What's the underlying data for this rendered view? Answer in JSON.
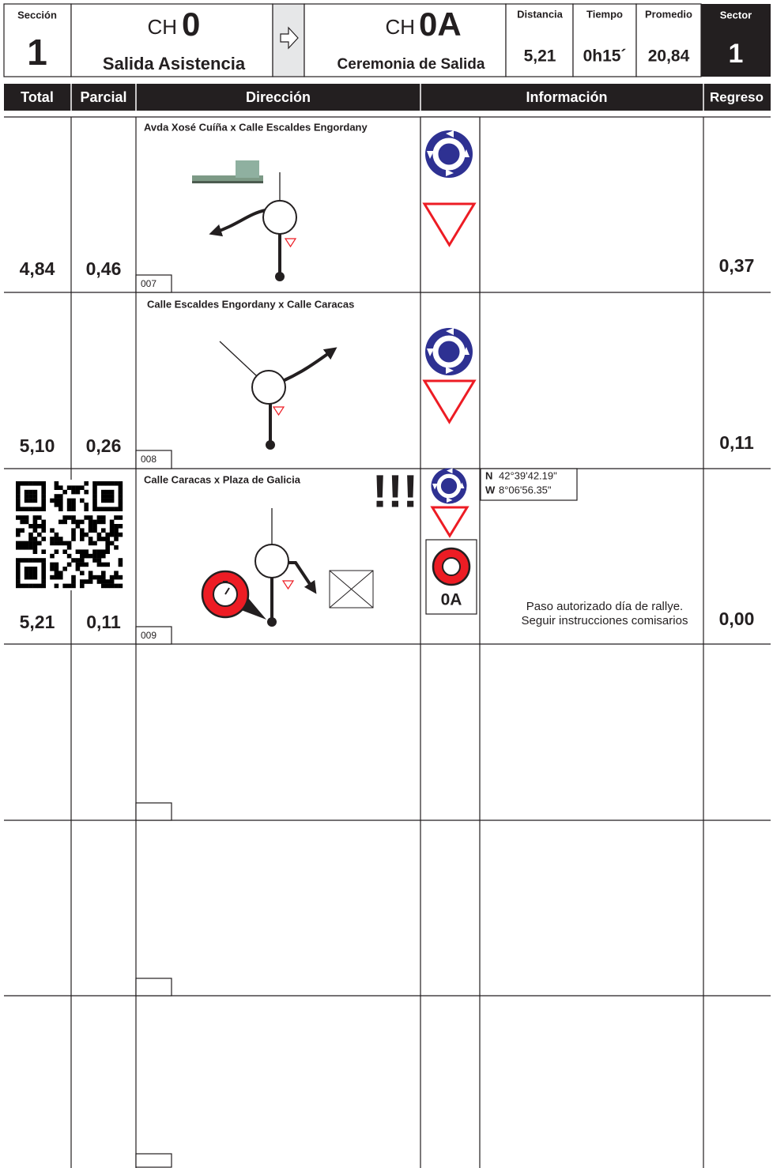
{
  "header": {
    "section_label": "Sección",
    "section": "1",
    "from_prefix": "CH",
    "from_code": "0",
    "from_name": "Salida Asistencia",
    "to_prefix": "CH",
    "to_code": "0A",
    "to_name": "Ceremonia de Salida",
    "distance_label": "Distancia",
    "distance": "5,21",
    "time_label": "Tiempo",
    "time": "0h15´",
    "average_label": "Promedio",
    "average": "20,84",
    "sector_label": "Sector",
    "sector": "1"
  },
  "columns": [
    "Total",
    "Parcial",
    "Dirección",
    "Información",
    "Regreso"
  ],
  "rows": [
    {
      "total": "4,84",
      "partial": "0,46",
      "title": "Avda Xosé Cuíña x Calle Escaldes Engordany",
      "number": "007",
      "return": "0,37"
    },
    {
      "total": "5,10",
      "partial": "0,26",
      "title": "Calle Escaldes Engordany x Calle Caracas",
      "number": "008",
      "return": "0,11"
    },
    {
      "total": "5,21",
      "partial": "0,11",
      "title": "Calle Caracas x Plaza de Galicia",
      "warning": "!!!",
      "number": "009",
      "coords": [
        {
          "dir": "N",
          "value": "42°39'42.19\""
        },
        {
          "dir": "W",
          "value": "8°06'56.35\""
        }
      ],
      "control": "0A",
      "info": [
        "Paso autorizado día de rallye.",
        "Seguir instrucciones comisarios"
      ],
      "return": "0,00"
    }
  ]
}
